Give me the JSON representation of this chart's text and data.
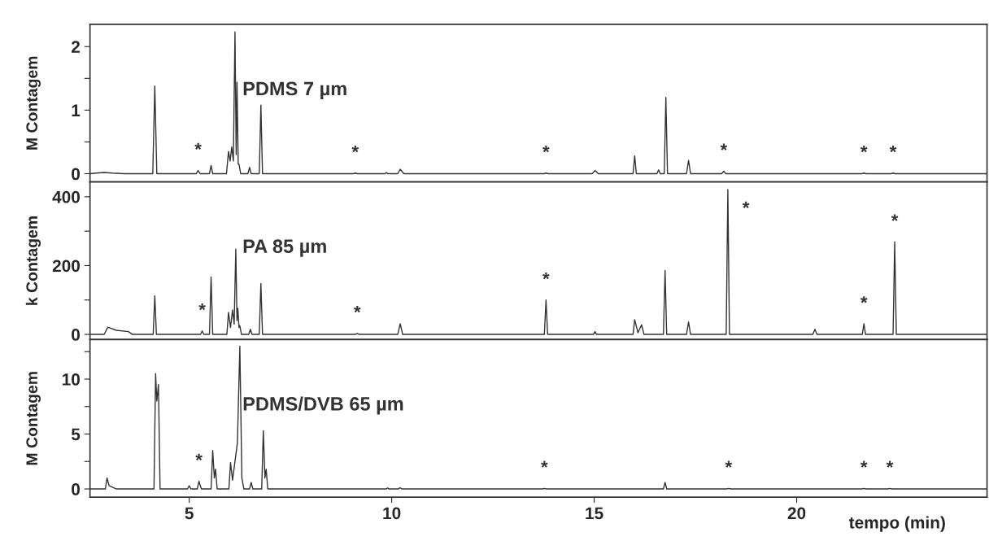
{
  "chart_data": [
    {
      "type": "line",
      "title": "PDMS 7 µm",
      "ylabel": "M Contagem",
      "xlim": [
        2.55,
        24.7
      ],
      "ylim": [
        -0.13,
        2.35
      ],
      "yticks": [
        0,
        {
          "value": 0.5,
          "label": null
        },
        1,
        {
          "value": 1.5,
          "label": null
        },
        2
      ],
      "tick_labels": "y",
      "grid": false,
      "marker": "none",
      "line_style": "solid",
      "series": [
        {
          "color": "#333333",
          "x": [
            2.55,
            2.7,
            2.9,
            3.1,
            3.4,
            4.1,
            4.15,
            4.2,
            5.17,
            5.22,
            5.27,
            5.5,
            5.54,
            5.58,
            5.92,
            5.97,
            6.01,
            6.05,
            6.09,
            6.13,
            6.16,
            6.18,
            6.21,
            6.23,
            6.27,
            6.45,
            6.49,
            6.53,
            6.73,
            6.77,
            6.81,
            9.05,
            9.1,
            9.15,
            9.84,
            9.87,
            9.9,
            10.15,
            10.21,
            10.3,
            13.76,
            13.81,
            13.86,
            14.95,
            15.02,
            15.1,
            15.96,
            16.0,
            16.04,
            16.55,
            16.59,
            16.63,
            16.73,
            16.77,
            16.81,
            17.28,
            17.33,
            17.38,
            18.15,
            18.2,
            18.25,
            21.61,
            21.66,
            21.71,
            22.33,
            22.38,
            22.43,
            24.7
          ],
          "values": [
            0,
            0.01,
            0.02,
            0.01,
            0,
            0,
            1.38,
            0,
            0,
            0.05,
            0,
            0,
            0.13,
            0,
            0,
            0.35,
            0.2,
            0.42,
            0.2,
            2.23,
            0.3,
            1.44,
            0.15,
            0.15,
            0,
            0,
            0.1,
            0,
            0,
            1.08,
            0,
            0,
            0.01,
            0,
            0,
            0.02,
            0,
            0,
            0.07,
            0,
            0,
            0.01,
            0,
            0,
            0.05,
            0,
            0,
            0.28,
            0,
            0,
            0.06,
            0,
            0,
            1.2,
            0,
            0,
            0.21,
            0,
            0,
            0.04,
            0,
            0,
            0.01,
            0,
            0,
            0.01,
            0,
            0
          ]
        }
      ],
      "annotations": [
        {
          "text": "*",
          "x": 5.22,
          "y": 0.05
        },
        {
          "text": "*",
          "x": 9.1,
          "y": 0.01
        },
        {
          "text": "*",
          "x": 13.81,
          "y": 0.01
        },
        {
          "text": "*",
          "x": 18.2,
          "y": 0.04
        },
        {
          "text": "*",
          "x": 21.66,
          "y": 0.01
        },
        {
          "text": "*",
          "x": 22.38,
          "y": 0.01
        }
      ]
    },
    {
      "type": "line",
      "title": "PA 85 µm",
      "ylabel": "k Contagem",
      "xlim": [
        2.55,
        24.7
      ],
      "ylim": [
        -15,
        443
      ],
      "yticks": [
        0,
        {
          "value": 100,
          "label": null
        },
        200,
        {
          "value": 300,
          "label": null
        },
        400
      ],
      "tick_labels": "y",
      "grid": false,
      "marker": "none",
      "line_style": "solid",
      "series": [
        {
          "color": "#333333",
          "x": [
            2.55,
            2.9,
            2.99,
            3.2,
            3.5,
            3.6,
            4.11,
            4.15,
            4.19,
            5.28,
            5.32,
            5.36,
            5.5,
            5.54,
            5.58,
            5.93,
            5.97,
            6.02,
            6.07,
            6.11,
            6.15,
            6.18,
            6.2,
            6.23,
            6.25,
            6.29,
            6.47,
            6.51,
            6.55,
            6.73,
            6.77,
            6.81,
            9.1,
            9.15,
            9.2,
            10.15,
            10.21,
            10.27,
            13.77,
            13.81,
            13.85,
            14.98,
            15.02,
            15.06,
            15.96,
            16.0,
            16.08,
            16.17,
            16.23,
            16.71,
            16.75,
            16.79,
            17.28,
            17.33,
            17.38,
            18.26,
            18.3,
            18.34,
            20.4,
            20.45,
            20.5,
            21.62,
            21.66,
            21.7,
            22.38,
            22.42,
            22.46,
            24.7
          ],
          "values": [
            0,
            0,
            21,
            12,
            8,
            0,
            0,
            112,
            0,
            0,
            10,
            0,
            0,
            167,
            0,
            0,
            64,
            20,
            71,
            30,
            248,
            40,
            76,
            20,
            25,
            0,
            0,
            15,
            0,
            0,
            148,
            0,
            0,
            3,
            0,
            0,
            31,
            0,
            0,
            100,
            0,
            0,
            8,
            0,
            0,
            43,
            5,
            28,
            0,
            0,
            186,
            0,
            0,
            36,
            0,
            0,
            421,
            0,
            0,
            15,
            0,
            0,
            31,
            0,
            0,
            269,
            0,
            0
          ]
        }
      ],
      "annotations": [
        {
          "text": "*",
          "x": 5.32,
          "y": 10
        },
        {
          "text": "*",
          "x": 9.15,
          "y": 3
        },
        {
          "text": "*",
          "x": 13.81,
          "y": 100
        },
        {
          "text": "*",
          "x": 18.3,
          "y": 421
        },
        {
          "text": "*",
          "x": 21.66,
          "y": 31
        },
        {
          "text": "*",
          "x": 22.42,
          "y": 269
        }
      ]
    },
    {
      "type": "line",
      "title": "PDMS/DVB 65 µm",
      "ylabel": "M Contagem",
      "xlabel": "tempo (min)",
      "xlim": [
        2.55,
        24.7
      ],
      "xticks": [
        5,
        10,
        15,
        20
      ],
      "ylim": [
        -0.75,
        13.6
      ],
      "yticks": [
        0,
        {
          "value": 2.5,
          "label": null
        },
        5,
        {
          "value": 7.5,
          "label": null
        },
        10,
        {
          "value": 12.5,
          "label": null
        }
      ],
      "grid": false,
      "marker": "none",
      "line_style": "solid",
      "series": [
        {
          "color": "#333333",
          "x": [
            2.55,
            2.93,
            2.97,
            3.02,
            3.2,
            4.13,
            4.17,
            4.2,
            4.24,
            4.28,
            4.96,
            5.0,
            5.04,
            5.2,
            5.24,
            5.3,
            5.54,
            5.58,
            5.62,
            5.65,
            5.69,
            5.98,
            6.02,
            6.07,
            6.19,
            6.25,
            6.3,
            6.35,
            6.49,
            6.53,
            6.57,
            6.79,
            6.83,
            6.87,
            6.9,
            6.94,
            9.87,
            9.9,
            9.93,
            10.17,
            10.2,
            10.25,
            13.72,
            13.77,
            13.82,
            16.71,
            16.75,
            16.79,
            18.27,
            18.32,
            18.37,
            21.61,
            21.66,
            21.71,
            22.25,
            22.3,
            22.35,
            24.7
          ],
          "values": [
            0,
            0,
            1.0,
            0.3,
            0,
            0,
            10.5,
            8,
            9.5,
            0,
            0,
            0.3,
            0,
            0,
            0.7,
            0,
            0,
            3.5,
            1.0,
            1.8,
            0,
            0,
            2.4,
            0.8,
            4.2,
            13.0,
            1.0,
            0,
            0,
            0.6,
            0,
            0,
            5.3,
            1.0,
            1.8,
            0,
            0,
            0.1,
            0,
            0,
            0.12,
            0,
            0,
            0.05,
            0,
            0,
            0.6,
            0,
            0,
            0.05,
            0,
            0,
            0.05,
            0,
            0,
            0.05,
            0,
            0
          ]
        }
      ],
      "annotations": [
        {
          "text": "*",
          "x": 5.24,
          "y": 0.7
        },
        {
          "text": "*",
          "x": 13.77,
          "y": 0.05
        },
        {
          "text": "*",
          "x": 18.32,
          "y": 0.05
        },
        {
          "text": "*",
          "x": 21.66,
          "y": 0.05
        },
        {
          "text": "*",
          "x": 22.3,
          "y": 0.05
        }
      ]
    }
  ]
}
